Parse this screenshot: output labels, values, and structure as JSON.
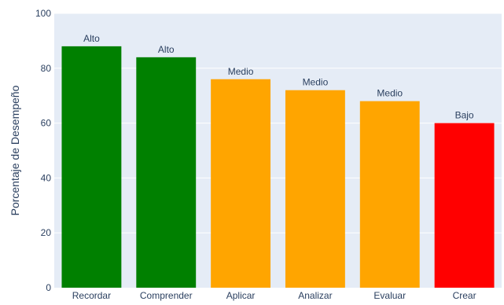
{
  "chart_data": {
    "type": "bar",
    "title": "",
    "xlabel": "",
    "ylabel": "Porcentaje de Desempeño",
    "ylim": [
      0,
      100
    ],
    "yticks": [
      0,
      20,
      40,
      60,
      80,
      100
    ],
    "grid": true,
    "legend": "none",
    "categories": [
      "Recordar",
      "Comprender",
      "Aplicar",
      "Analizar",
      "Evaluar",
      "Crear"
    ],
    "values": [
      88,
      84,
      76,
      72,
      68,
      60
    ],
    "bar_labels": [
      "Alto",
      "Alto",
      "Medio",
      "Medio",
      "Medio",
      "Bajo"
    ],
    "bar_colors": [
      "#008000",
      "#008000",
      "#ffa500",
      "#ffa500",
      "#ffa500",
      "#ff0000"
    ],
    "colors": {
      "plot_background": "#e5ecf6",
      "gridline": "#ffffff",
      "text": "#2a3f5f"
    }
  }
}
